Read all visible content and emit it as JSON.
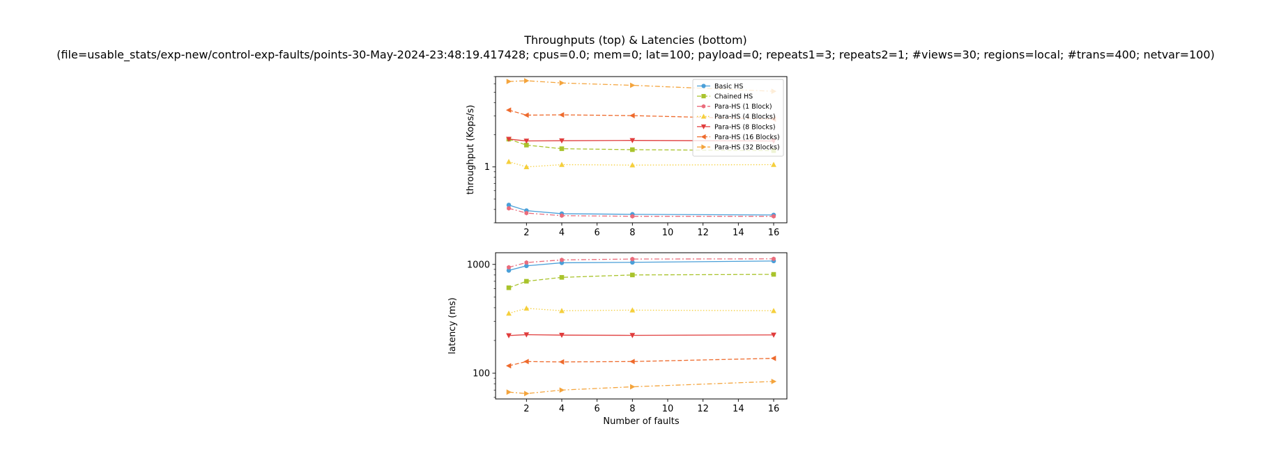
{
  "figure": {
    "title": "Throughputs (top) & Latencies (bottom)",
    "subtitle": "(file=usable_stats/exp-new/control-exp-faults/points-30-May-2024-23:48:19.417428; cpus=0.0; mem=0; lat=100; payload=0; repeats1=3; repeats2=1; #views=30; regions=local; #trans=400; netvar=100)"
  },
  "chart_data": [
    {
      "type": "line",
      "name": "throughput",
      "xlabel": "",
      "ylabel": "throughput (Kops/s)",
      "yscale": "log",
      "xlim": [
        0.25,
        16.75
      ],
      "ylim": [
        0.3,
        7.0
      ],
      "xticks": [
        2,
        4,
        6,
        8,
        10,
        12,
        14,
        16
      ],
      "yticks": [
        {
          "value": 1,
          "label": "1"
        }
      ],
      "legend": "top-right",
      "grid": false,
      "x": [
        1,
        2,
        4,
        8,
        16
      ],
      "series": [
        {
          "name": "Basic HS",
          "color": "#4a9fd8",
          "marker": "circle",
          "dash": "solid",
          "values": [
            0.44,
            0.39,
            0.365,
            0.36,
            0.355
          ]
        },
        {
          "name": "Chained HS",
          "color": "#a9c32c",
          "marker": "square",
          "dash": "dashed",
          "values": [
            1.82,
            1.6,
            1.48,
            1.45,
            1.42
          ]
        },
        {
          "name": "Para-HS (1 Block)",
          "color": "#ea6c7c",
          "marker": "hexagon",
          "dash": "dashdot",
          "values": [
            0.41,
            0.37,
            0.35,
            0.345,
            0.345
          ]
        },
        {
          "name": "Para-HS (4 Blocks)",
          "color": "#f5cf3c",
          "marker": "triangle-up",
          "dash": "dotted",
          "values": [
            1.12,
            1.0,
            1.05,
            1.04,
            1.05
          ]
        },
        {
          "name": "Para-HS (8 Blocks)",
          "color": "#e03c3c",
          "marker": "triangle-down",
          "dash": "solid",
          "values": [
            1.82,
            1.75,
            1.76,
            1.77,
            1.75
          ]
        },
        {
          "name": "Para-HS (16 Blocks)",
          "color": "#ee6a2c",
          "marker": "triangle-left",
          "dash": "dashed",
          "values": [
            3.4,
            3.05,
            3.07,
            3.02,
            2.8
          ]
        },
        {
          "name": "Para-HS (32 Blocks)",
          "color": "#f4a43c",
          "marker": "triangle-right",
          "dash": "dashdot",
          "values": [
            6.3,
            6.4,
            6.1,
            5.8,
            5.1
          ]
        }
      ]
    },
    {
      "type": "line",
      "name": "latency",
      "xlabel": "Number of faults",
      "ylabel": "latency (ms)",
      "yscale": "log",
      "xlim": [
        0.25,
        16.75
      ],
      "ylim": [
        58,
        1280
      ],
      "xticks": [
        2,
        4,
        6,
        8,
        10,
        12,
        14,
        16
      ],
      "yticks": [
        {
          "value": 100,
          "label": "100"
        },
        {
          "value": 1000,
          "label": "1000"
        }
      ],
      "grid": false,
      "x": [
        1,
        2,
        4,
        8,
        16
      ],
      "series": [
        {
          "name": "Basic HS",
          "color": "#4a9fd8",
          "marker": "circle",
          "dash": "solid",
          "values": [
            880,
            970,
            1035,
            1045,
            1075
          ]
        },
        {
          "name": "Chained HS",
          "color": "#a9c32c",
          "marker": "square",
          "dash": "dashed",
          "values": [
            610,
            700,
            760,
            800,
            810
          ]
        },
        {
          "name": "Para-HS (1 Block)",
          "color": "#ea6c7c",
          "marker": "hexagon",
          "dash": "dashdot",
          "values": [
            940,
            1040,
            1100,
            1120,
            1125
          ]
        },
        {
          "name": "Para-HS (4 Blocks)",
          "color": "#f5cf3c",
          "marker": "triangle-up",
          "dash": "dotted",
          "values": [
            355,
            395,
            375,
            380,
            375
          ]
        },
        {
          "name": "Para-HS (8 Blocks)",
          "color": "#e03c3c",
          "marker": "triangle-down",
          "dash": "solid",
          "values": [
            222,
            226,
            224,
            223,
            225
          ]
        },
        {
          "name": "Para-HS (16 Blocks)",
          "color": "#ee6a2c",
          "marker": "triangle-left",
          "dash": "dashed",
          "values": [
            117,
            128,
            127,
            128,
            137
          ]
        },
        {
          "name": "Para-HS (32 Blocks)",
          "color": "#f4a43c",
          "marker": "triangle-right",
          "dash": "dashdot",
          "values": [
            67,
            65,
            70,
            75,
            84
          ]
        }
      ]
    }
  ]
}
